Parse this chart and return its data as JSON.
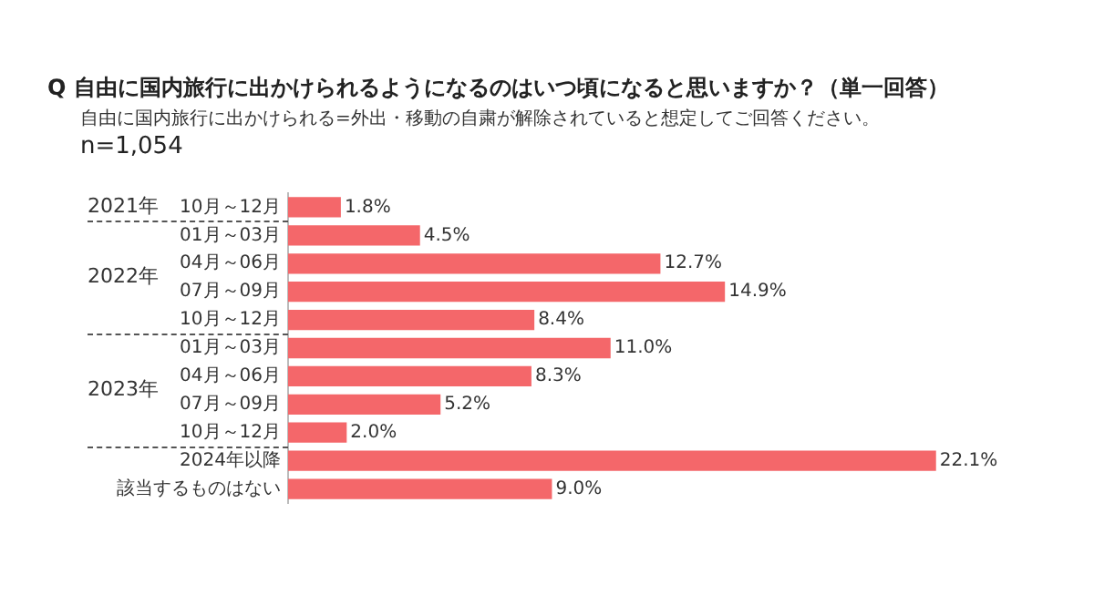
{
  "chart_data": {
    "type": "bar",
    "orientation": "horizontal",
    "title": "Q 自由に国内旅行に出かけられるようになるのはいつ頃になると思いますか？（単一回答）",
    "subtitle": "自由に国内旅行に出かけられる=外出・移動の自粛が解除されていると想定してご回答ください。",
    "annotations": [
      "n=1,054",
      "2021年",
      "2022年",
      "2023年"
    ],
    "categories": [
      "10月～12月",
      "01月～03月",
      "04月～06月",
      "07月～09月",
      "10月～12月",
      "01月～03月",
      "04月～06月",
      "07月～09月",
      "10月～12月",
      "2024年以降",
      "該当するものはない"
    ],
    "values": [
      1.8,
      4.5,
      12.7,
      14.9,
      8.4,
      11.0,
      8.3,
      5.2,
      2.0,
      22.1,
      9.0
    ],
    "value_labels": [
      "1.8%",
      "4.5%",
      "12.7%",
      "14.9%",
      "8.4%",
      "11.0%",
      "8.3%",
      "5.2%",
      "2.0%",
      "22.1%",
      "9.0%"
    ],
    "color": "#f4676a",
    "grid": false,
    "legend": false
  }
}
